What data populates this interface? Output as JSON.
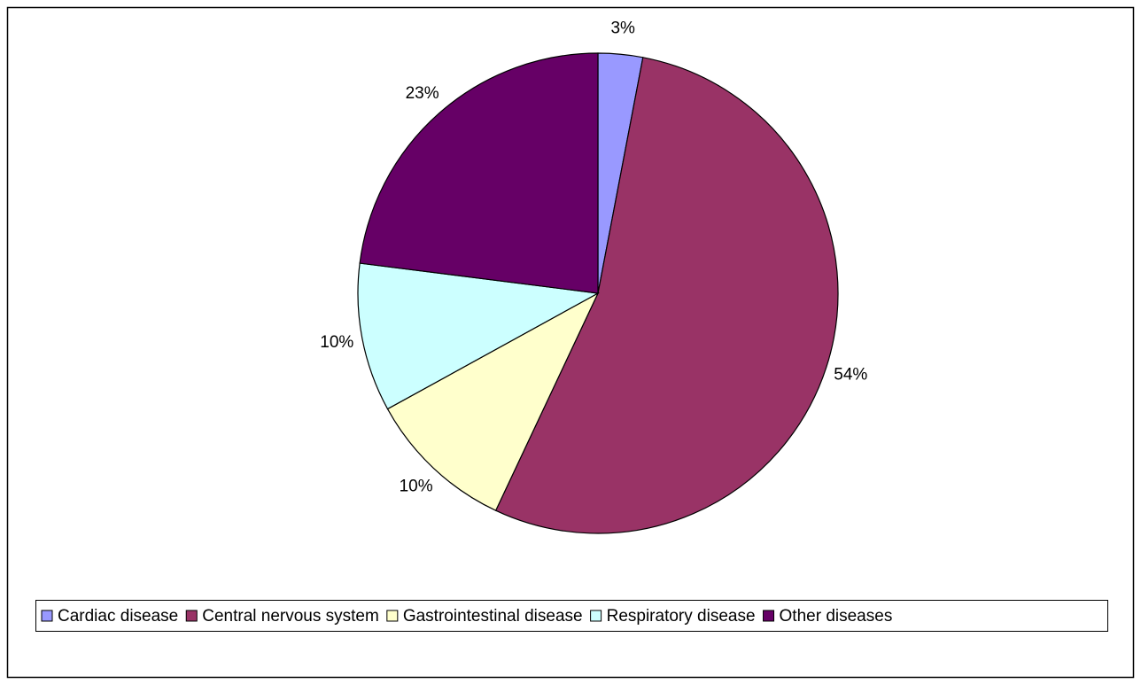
{
  "chart_data": {
    "type": "pie",
    "categories": [
      "Cardiac disease",
      "Central nervous system",
      "Gastrointestinal disease",
      "Respiratory disease",
      "Other diseases"
    ],
    "values": [
      3,
      54,
      10,
      10,
      23
    ],
    "value_labels": [
      "3%",
      "54%",
      "10%",
      "10%",
      "23%"
    ],
    "colors": [
      "#9999ff",
      "#993366",
      "#ffffcc",
      "#ccffff",
      "#660066"
    ],
    "legend": "bottom"
  }
}
